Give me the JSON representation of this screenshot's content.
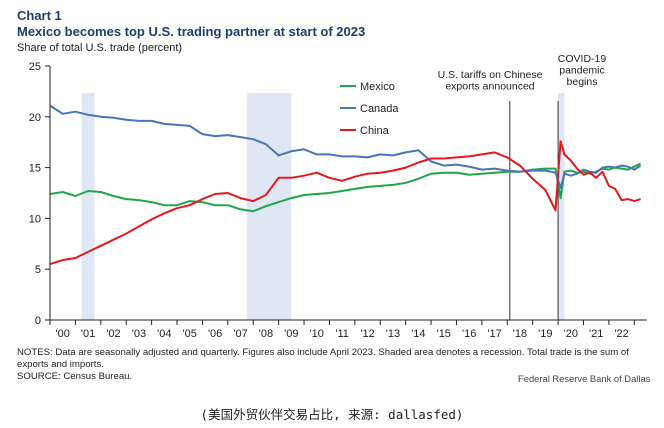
{
  "header": {
    "chart_label": "Chart 1",
    "title": "Mexico becomes top U.S. trading partner at start of 2023",
    "ylabel": "Share of total U.S. trade (percent)"
  },
  "footer": {
    "notes": "NOTES: Data are seasonally adjusted and quarterly. Figures also include April 2023. Shaded area denotes a recession. Total trade is the sum of exports and imports.",
    "source": "SOURCE: Census Bureau.",
    "credit": "Federal Reserve Bank of Dallas",
    "caption": "(美国外贸伙伴交易占比, 来源: dallasfed)"
  },
  "colors": {
    "mexico": "#1fa64a",
    "canada": "#4a74b8",
    "china": "#e3191c",
    "recession": "#dfe7f4",
    "axis": "#222222",
    "title": "#1f3e6e"
  },
  "chart_data": {
    "type": "line",
    "title": "Mexico becomes top U.S. trading partner at start of 2023",
    "ylabel": "Share of total U.S. trade (percent)",
    "xlabel": "",
    "xlim": [
      2000,
      2023.5
    ],
    "ylim": [
      0,
      25
    ],
    "yticks": [
      0,
      5,
      10,
      15,
      20,
      25
    ],
    "x_tick_labels": [
      "'00",
      "'01",
      "'02",
      "'03",
      "'04",
      "'05",
      "'06",
      "'07",
      "'08",
      "'09",
      "'10",
      "'11",
      "'12",
      "'13",
      "'14",
      "'15",
      "'16",
      "'17",
      "'18",
      "'19",
      "'20",
      "'21",
      "'22"
    ],
    "grid": false,
    "legend": {
      "position": "top-center",
      "entries": [
        "Mexico",
        "Canada",
        "China"
      ]
    },
    "recessions": [
      {
        "start": 2001.25,
        "end": 2001.75
      },
      {
        "start": 2007.75,
        "end": 2009.5
      },
      {
        "start": 2020.0,
        "end": 2020.25
      }
    ],
    "annotations": [
      {
        "label_lines": [
          "U.S. tariffs on Chinese",
          "exports announced"
        ],
        "x": 2018.1
      },
      {
        "label_lines": [
          "COVID-19",
          "pandemic",
          "begins"
        ],
        "x": 2020.0
      }
    ],
    "series": [
      {
        "name": "Mexico",
        "x": [
          2000,
          2000.5,
          2001,
          2001.5,
          2002,
          2002.5,
          2003,
          2003.5,
          2004,
          2004.5,
          2005,
          2005.5,
          2006,
          2006.5,
          2007,
          2007.5,
          2008,
          2008.5,
          2009,
          2009.5,
          2010,
          2010.5,
          2011,
          2011.5,
          2012,
          2012.5,
          2013,
          2013.5,
          2014,
          2014.5,
          2015,
          2015.5,
          2016,
          2016.5,
          2017,
          2017.5,
          2018,
          2018.5,
          2019,
          2019.5,
          2019.9,
          2020.1,
          2020.25,
          2020.5,
          2020.75,
          2021,
          2021.25,
          2021.5,
          2021.75,
          2022,
          2022.25,
          2022.5,
          2022.75,
          2023.0,
          2023.25
        ],
        "values": [
          12.4,
          12.6,
          12.2,
          12.7,
          12.6,
          12.2,
          11.9,
          11.8,
          11.6,
          11.3,
          11.3,
          11.7,
          11.6,
          11.3,
          11.3,
          10.9,
          10.7,
          11.2,
          11.6,
          12.0,
          12.3,
          12.4,
          12.5,
          12.7,
          12.9,
          13.1,
          13.2,
          13.3,
          13.5,
          13.9,
          14.4,
          14.5,
          14.5,
          14.3,
          14.4,
          14.5,
          14.6,
          14.6,
          14.8,
          14.9,
          14.9,
          12.0,
          14.6,
          14.7,
          14.5,
          14.6,
          14.4,
          14.6,
          14.9,
          14.8,
          15.0,
          14.9,
          14.8,
          15.1,
          15.4
        ]
      },
      {
        "name": "Canada",
        "x": [
          2000,
          2000.5,
          2001,
          2001.5,
          2002,
          2002.5,
          2003,
          2003.5,
          2004,
          2004.5,
          2005,
          2005.5,
          2006,
          2006.5,
          2007,
          2007.5,
          2008,
          2008.5,
          2009,
          2009.5,
          2010,
          2010.5,
          2011,
          2011.5,
          2012,
          2012.5,
          2013,
          2013.5,
          2014,
          2014.5,
          2015,
          2015.5,
          2016,
          2016.5,
          2017,
          2017.5,
          2018,
          2018.5,
          2019,
          2019.5,
          2019.9,
          2020.1,
          2020.25,
          2020.5,
          2020.75,
          2021,
          2021.25,
          2021.5,
          2021.75,
          2022,
          2022.25,
          2022.5,
          2022.75,
          2023.0,
          2023.25
        ],
        "values": [
          21.1,
          20.3,
          20.5,
          20.2,
          20.0,
          19.9,
          19.7,
          19.6,
          19.6,
          19.3,
          19.2,
          19.1,
          18.3,
          18.1,
          18.2,
          18.0,
          17.8,
          17.3,
          16.2,
          16.6,
          16.8,
          16.3,
          16.3,
          16.1,
          16.1,
          16.0,
          16.3,
          16.2,
          16.5,
          16.7,
          15.6,
          15.2,
          15.3,
          15.1,
          14.8,
          14.9,
          14.7,
          14.6,
          14.7,
          14.7,
          14.5,
          13.0,
          14.4,
          14.2,
          14.4,
          14.8,
          14.6,
          14.5,
          15.0,
          15.1,
          15.0,
          15.2,
          15.1,
          14.8,
          15.2
        ]
      },
      {
        "name": "China",
        "x": [
          2000,
          2000.5,
          2001,
          2001.5,
          2002,
          2002.5,
          2003,
          2003.5,
          2004,
          2004.5,
          2005,
          2005.5,
          2006,
          2006.5,
          2007,
          2007.5,
          2008,
          2008.5,
          2009,
          2009.5,
          2010,
          2010.5,
          2011,
          2011.5,
          2012,
          2012.5,
          2013,
          2013.5,
          2014,
          2014.5,
          2015,
          2015.5,
          2016,
          2016.5,
          2017,
          2017.5,
          2018,
          2018.5,
          2019,
          2019.5,
          2019.9,
          2020.1,
          2020.25,
          2020.5,
          2020.75,
          2021,
          2021.25,
          2021.5,
          2021.75,
          2022,
          2022.25,
          2022.5,
          2022.75,
          2023.0,
          2023.25
        ],
        "values": [
          5.5,
          5.9,
          6.1,
          6.7,
          7.3,
          7.9,
          8.5,
          9.2,
          9.9,
          10.5,
          11.0,
          11.3,
          11.9,
          12.4,
          12.5,
          12.0,
          11.7,
          12.3,
          14.0,
          14.0,
          14.2,
          14.5,
          14.0,
          13.7,
          14.1,
          14.4,
          14.5,
          14.7,
          15.0,
          15.5,
          15.9,
          15.9,
          16.0,
          16.1,
          16.3,
          16.5,
          16.0,
          15.2,
          13.9,
          12.8,
          10.8,
          17.6,
          16.3,
          15.7,
          14.9,
          14.3,
          14.5,
          14.0,
          14.6,
          13.2,
          12.9,
          11.8,
          11.9,
          11.7,
          11.9
        ]
      }
    ]
  }
}
